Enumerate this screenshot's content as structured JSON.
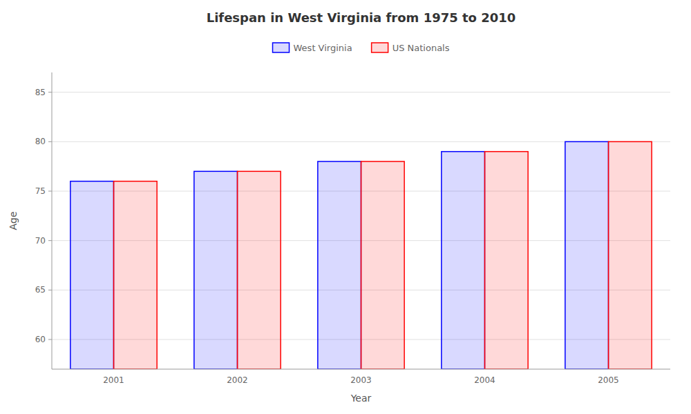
{
  "chart_data": {
    "type": "bar",
    "title": "Lifespan in West Virginia from 1975 to 2010",
    "xlabel": "Year",
    "ylabel": "Age",
    "categories": [
      "2001",
      "2002",
      "2003",
      "2004",
      "2005"
    ],
    "series": [
      {
        "name": "West Virginia",
        "color": "#0000ff",
        "values": [
          76,
          77,
          78,
          79,
          80
        ]
      },
      {
        "name": "US Nationals",
        "color": "#ff0000",
        "values": [
          76,
          77,
          78,
          79,
          80
        ]
      }
    ],
    "ylim": [
      57,
      87
    ],
    "yticks": [
      60,
      65,
      70,
      75,
      80,
      85
    ],
    "grid": true,
    "legend": "top"
  }
}
